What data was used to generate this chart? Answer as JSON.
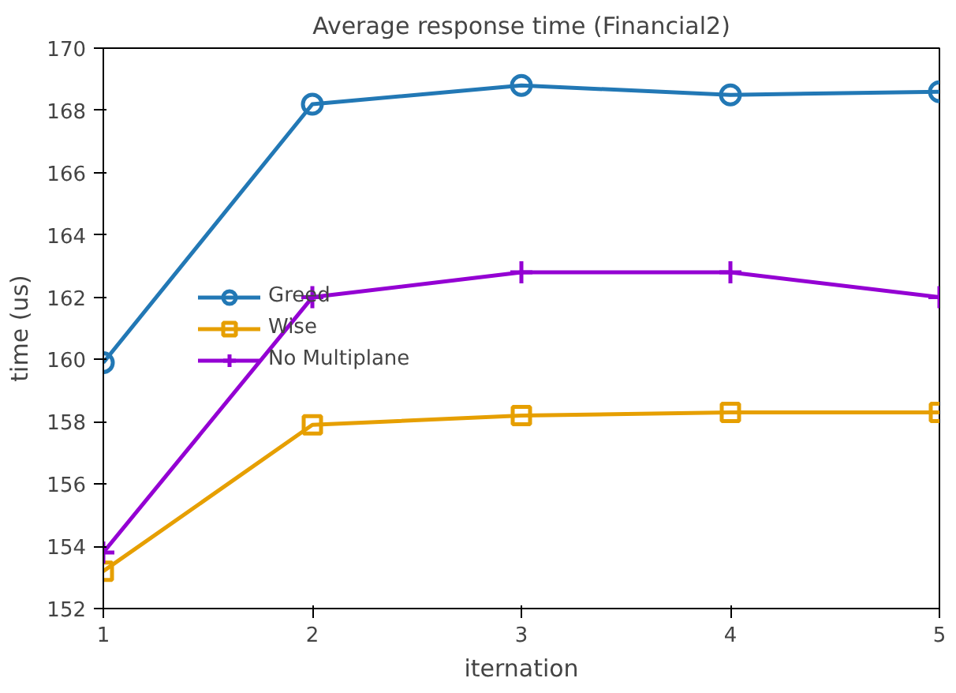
{
  "chart_data": {
    "type": "line",
    "title": "Average response time (Financial2)",
    "xlabel": "iternation",
    "ylabel": "time (us)",
    "x": [
      1,
      2,
      3,
      4,
      5
    ],
    "series": [
      {
        "name": "Greed",
        "color": "#2278b5",
        "marker": "circle",
        "values": [
          159.9,
          168.2,
          168.8,
          168.5,
          168.6
        ]
      },
      {
        "name": "Wise",
        "color": "#e69f00",
        "marker": "square",
        "values": [
          153.2,
          157.9,
          158.2,
          158.3,
          158.3
        ]
      },
      {
        "name": "No Multiplane",
        "color": "#9400d3",
        "marker": "cross",
        "values": [
          153.8,
          162.0,
          162.8,
          162.8,
          162.0
        ]
      }
    ],
    "xlim": [
      1,
      5
    ],
    "ylim": [
      152,
      170
    ],
    "xticks": [
      1,
      2,
      3,
      4,
      5
    ],
    "yticks": [
      152,
      154,
      156,
      158,
      160,
      162,
      164,
      166,
      168,
      170
    ],
    "grid": false,
    "legend": "left",
    "line_style": "solid"
  }
}
